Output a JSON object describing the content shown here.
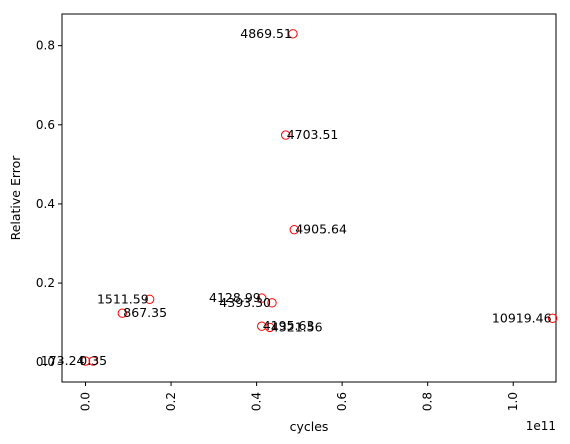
{
  "chart_data": {
    "type": "scatter",
    "title": "",
    "xlabel": "cycles",
    "ylabel": "Relative Error",
    "x_offset_label": "1e11",
    "xlim": [
      -0.055,
      1.1
    ],
    "ylim": [
      -0.05,
      0.88
    ],
    "x_ticks": [
      {
        "value": 0.0,
        "label": "0.0"
      },
      {
        "value": 0.2,
        "label": "0.2"
      },
      {
        "value": 0.4,
        "label": "0.4"
      },
      {
        "value": 0.6,
        "label": "0.6"
      },
      {
        "value": 0.8,
        "label": "0.8"
      },
      {
        "value": 1.0,
        "label": "1.0"
      }
    ],
    "y_ticks": [
      {
        "value": 0.0,
        "label": "0.0"
      },
      {
        "value": 0.2,
        "label": "0.2"
      },
      {
        "value": 0.4,
        "label": "0.4"
      },
      {
        "value": 0.6,
        "label": "0.6"
      },
      {
        "value": 0.8,
        "label": "0.8"
      }
    ],
    "grid": false,
    "legend": "none",
    "marker": {
      "shape": "open-circle",
      "color": "#ff0000"
    },
    "points": [
      {
        "x": 0.485,
        "y": 0.83,
        "label": "4869.51",
        "anchor": "end"
      },
      {
        "x": 0.468,
        "y": 0.574,
        "label": "4703.51",
        "anchor": "start"
      },
      {
        "x": 0.488,
        "y": 0.335,
        "label": "4905.64",
        "anchor": "start"
      },
      {
        "x": 0.15,
        "y": 0.159,
        "label": "1511.59",
        "anchor": "end"
      },
      {
        "x": 0.086,
        "y": 0.124,
        "label": "867.35",
        "anchor": "start"
      },
      {
        "x": 0.436,
        "y": 0.15,
        "label": "4393.30",
        "anchor": "end"
      },
      {
        "x": 0.412,
        "y": 0.162,
        "label": "4128.99",
        "anchor": "end"
      },
      {
        "x": 0.412,
        "y": 0.091,
        "label": "4195.63",
        "anchor": "start"
      },
      {
        "x": 0.431,
        "y": 0.088,
        "label": "4321.56",
        "anchor": "start"
      },
      {
        "x": 1.092,
        "y": 0.111,
        "label": "10919.46",
        "anchor": "end"
      },
      {
        "x": 0.0,
        "y": 0.003,
        "label": "173.24",
        "anchor": "end"
      },
      {
        "x": 0.018,
        "y": 0.003,
        "label": "0.35",
        "anchor": "middle"
      }
    ]
  }
}
